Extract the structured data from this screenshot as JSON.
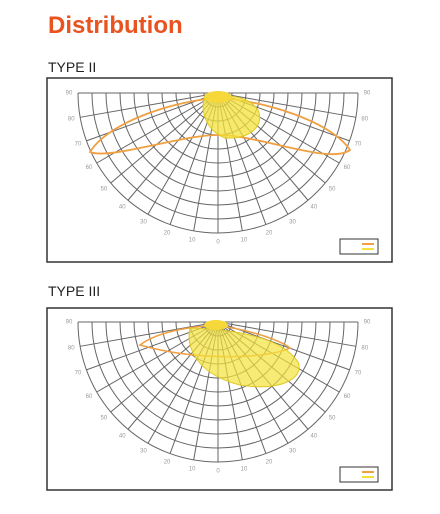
{
  "header": {
    "title": "Distribution"
  },
  "sections": [
    {
      "title": "TYPE II",
      "angle_labels": [
        "90",
        "80",
        "70",
        "60",
        "50",
        "40",
        "30",
        "20",
        "10",
        "0",
        "10",
        "20",
        "30",
        "40",
        "50",
        "60",
        "70",
        "80",
        "90"
      ]
    },
    {
      "title": "TYPE III",
      "angle_labels": [
        "90",
        "80",
        "70",
        "60",
        "50",
        "40",
        "30",
        "20",
        "10",
        "0",
        "10",
        "20",
        "30",
        "40",
        "50",
        "60",
        "70",
        "80",
        "90"
      ]
    }
  ]
}
